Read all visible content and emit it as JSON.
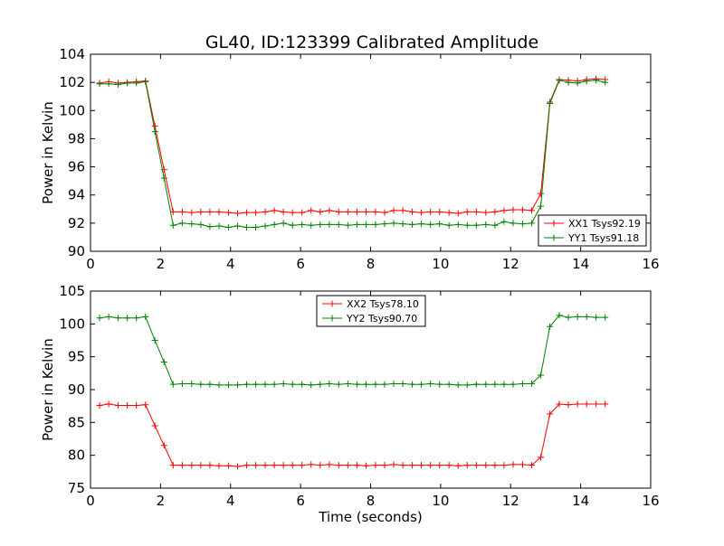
{
  "title": "GL40, ID:123399 Calibrated Amplitude",
  "colors": {
    "xx": "#ff0000",
    "yy": "#008000",
    "axis": "#000000",
    "background": "#ffffff"
  },
  "chart_data": [
    {
      "type": "line",
      "title": "GL40, ID:123399 Calibrated Amplitude",
      "xlabel": "",
      "ylabel": "Power in Kelvin",
      "xlim": [
        0,
        16
      ],
      "ylim": [
        90,
        104
      ],
      "xticks": [
        0,
        2,
        4,
        6,
        8,
        10,
        12,
        14,
        16
      ],
      "yticks": [
        90,
        92,
        94,
        96,
        98,
        100,
        102,
        104
      ],
      "grid": false,
      "legend_position": "lower-right",
      "marker": "plus",
      "x": [
        0.26,
        0.52,
        0.79,
        1.05,
        1.31,
        1.57,
        1.84,
        2.1,
        2.36,
        2.62,
        2.89,
        3.15,
        3.41,
        3.67,
        3.94,
        4.2,
        4.46,
        4.72,
        4.99,
        5.25,
        5.51,
        5.77,
        6.04,
        6.3,
        6.56,
        6.82,
        7.09,
        7.35,
        7.61,
        7.87,
        8.14,
        8.4,
        8.66,
        8.92,
        9.19,
        9.45,
        9.71,
        9.97,
        10.24,
        10.5,
        10.76,
        11.02,
        11.29,
        11.55,
        11.81,
        12.07,
        12.34,
        12.6,
        12.86,
        13.12,
        13.39,
        13.65,
        13.91,
        14.17,
        14.44,
        14.7
      ],
      "series": [
        {
          "name": "XX1 Tsys92.19",
          "color": "#ff0000",
          "values": [
            101.95,
            102.05,
            101.95,
            102.0,
            102.05,
            102.1,
            98.9,
            95.8,
            92.8,
            92.8,
            92.75,
            92.8,
            92.8,
            92.8,
            92.75,
            92.7,
            92.75,
            92.75,
            92.8,
            92.9,
            92.8,
            92.75,
            92.75,
            92.9,
            92.8,
            92.9,
            92.8,
            92.8,
            92.8,
            92.8,
            92.8,
            92.75,
            92.9,
            92.9,
            92.8,
            92.75,
            92.8,
            92.8,
            92.75,
            92.7,
            92.8,
            92.8,
            92.75,
            92.8,
            92.9,
            92.95,
            92.95,
            92.9,
            94.1,
            100.6,
            102.2,
            102.15,
            102.1,
            102.2,
            102.25,
            102.2
          ]
        },
        {
          "name": "YY1 Tsys91.18",
          "color": "#008000",
          "values": [
            101.9,
            101.9,
            101.85,
            101.95,
            101.95,
            102.05,
            98.5,
            95.2,
            91.85,
            92.0,
            91.95,
            91.9,
            91.75,
            91.8,
            91.7,
            91.8,
            91.7,
            91.7,
            91.8,
            91.9,
            92.0,
            91.85,
            91.9,
            91.85,
            91.9,
            91.9,
            91.9,
            91.85,
            91.9,
            91.9,
            91.9,
            91.95,
            92.0,
            91.95,
            91.9,
            91.95,
            91.9,
            91.95,
            91.85,
            91.9,
            91.85,
            91.85,
            91.9,
            91.85,
            92.1,
            92.0,
            91.95,
            92.0,
            93.2,
            100.5,
            102.15,
            102.0,
            101.95,
            102.1,
            102.15,
            102.0
          ]
        }
      ]
    },
    {
      "type": "line",
      "title": "",
      "xlabel": "Time (seconds)",
      "ylabel": "Power in Kelvin",
      "xlim": [
        0,
        16
      ],
      "ylim": [
        75,
        105
      ],
      "xticks": [
        0,
        2,
        4,
        6,
        8,
        10,
        12,
        14,
        16
      ],
      "yticks": [
        75,
        80,
        85,
        90,
        95,
        100,
        105
      ],
      "grid": false,
      "legend_position": "upper-center",
      "marker": "plus",
      "x": [
        0.26,
        0.52,
        0.79,
        1.05,
        1.31,
        1.57,
        1.84,
        2.1,
        2.36,
        2.62,
        2.89,
        3.15,
        3.41,
        3.67,
        3.94,
        4.2,
        4.46,
        4.72,
        4.99,
        5.25,
        5.51,
        5.77,
        6.04,
        6.3,
        6.56,
        6.82,
        7.09,
        7.35,
        7.61,
        7.87,
        8.14,
        8.4,
        8.66,
        8.92,
        9.19,
        9.45,
        9.71,
        9.97,
        10.24,
        10.5,
        10.76,
        11.02,
        11.29,
        11.55,
        11.81,
        12.07,
        12.34,
        12.6,
        12.86,
        13.12,
        13.39,
        13.65,
        13.91,
        14.17,
        14.44,
        14.7
      ],
      "series": [
        {
          "name": "XX2 Tsys78.10",
          "color": "#ff0000",
          "values": [
            87.6,
            87.8,
            87.6,
            87.6,
            87.6,
            87.7,
            84.5,
            81.5,
            78.5,
            78.5,
            78.5,
            78.5,
            78.5,
            78.4,
            78.4,
            78.3,
            78.5,
            78.5,
            78.5,
            78.5,
            78.5,
            78.5,
            78.5,
            78.6,
            78.5,
            78.6,
            78.5,
            78.5,
            78.5,
            78.4,
            78.5,
            78.5,
            78.6,
            78.5,
            78.5,
            78.5,
            78.5,
            78.5,
            78.5,
            78.4,
            78.5,
            78.5,
            78.5,
            78.5,
            78.5,
            78.6,
            78.6,
            78.5,
            79.7,
            86.3,
            87.8,
            87.7,
            87.8,
            87.8,
            87.8,
            87.8
          ]
        },
        {
          "name": "YY2 Tsys90.70",
          "color": "#008000",
          "values": [
            100.9,
            101.1,
            100.9,
            100.9,
            100.9,
            101.1,
            97.5,
            94.2,
            90.8,
            90.9,
            90.9,
            90.8,
            90.8,
            90.7,
            90.7,
            90.7,
            90.8,
            90.8,
            90.8,
            90.8,
            90.9,
            90.8,
            90.8,
            90.7,
            90.8,
            90.9,
            90.8,
            90.9,
            90.8,
            90.8,
            90.8,
            90.8,
            90.9,
            90.9,
            90.8,
            90.8,
            90.9,
            90.8,
            90.8,
            90.7,
            90.7,
            90.8,
            90.8,
            90.8,
            90.8,
            90.8,
            90.9,
            90.9,
            92.2,
            99.6,
            101.3,
            101.0,
            101.1,
            101.1,
            101.0,
            101.0
          ]
        }
      ]
    }
  ]
}
